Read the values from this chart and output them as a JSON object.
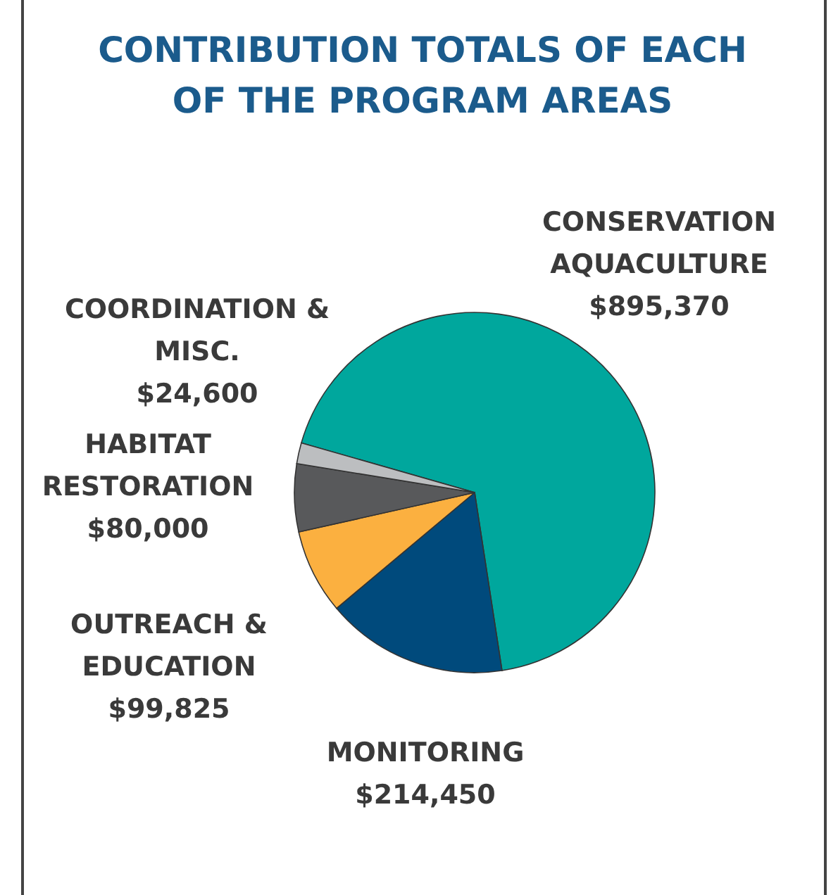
{
  "chart_data": {
    "type": "pie",
    "title": "CONTRIBUTION TOTALS OF EACH OF THE PROGRAM AREAS",
    "categories": [
      "CONSERVATION AQUACULTURE",
      "MONITORING",
      "OUTREACH & EDUCATION",
      "HABITAT RESTORATION",
      "COORDINATION & MISC."
    ],
    "values": [
      895370,
      214450,
      99825,
      80000,
      24600
    ],
    "value_labels": [
      "$895,370",
      "$214,450",
      "$99,825",
      "$80,000",
      "$24,600"
    ],
    "colors": [
      "#00a79d",
      "#004a7c",
      "#fbb040",
      "#58595b",
      "#bcbec0"
    ]
  }
}
